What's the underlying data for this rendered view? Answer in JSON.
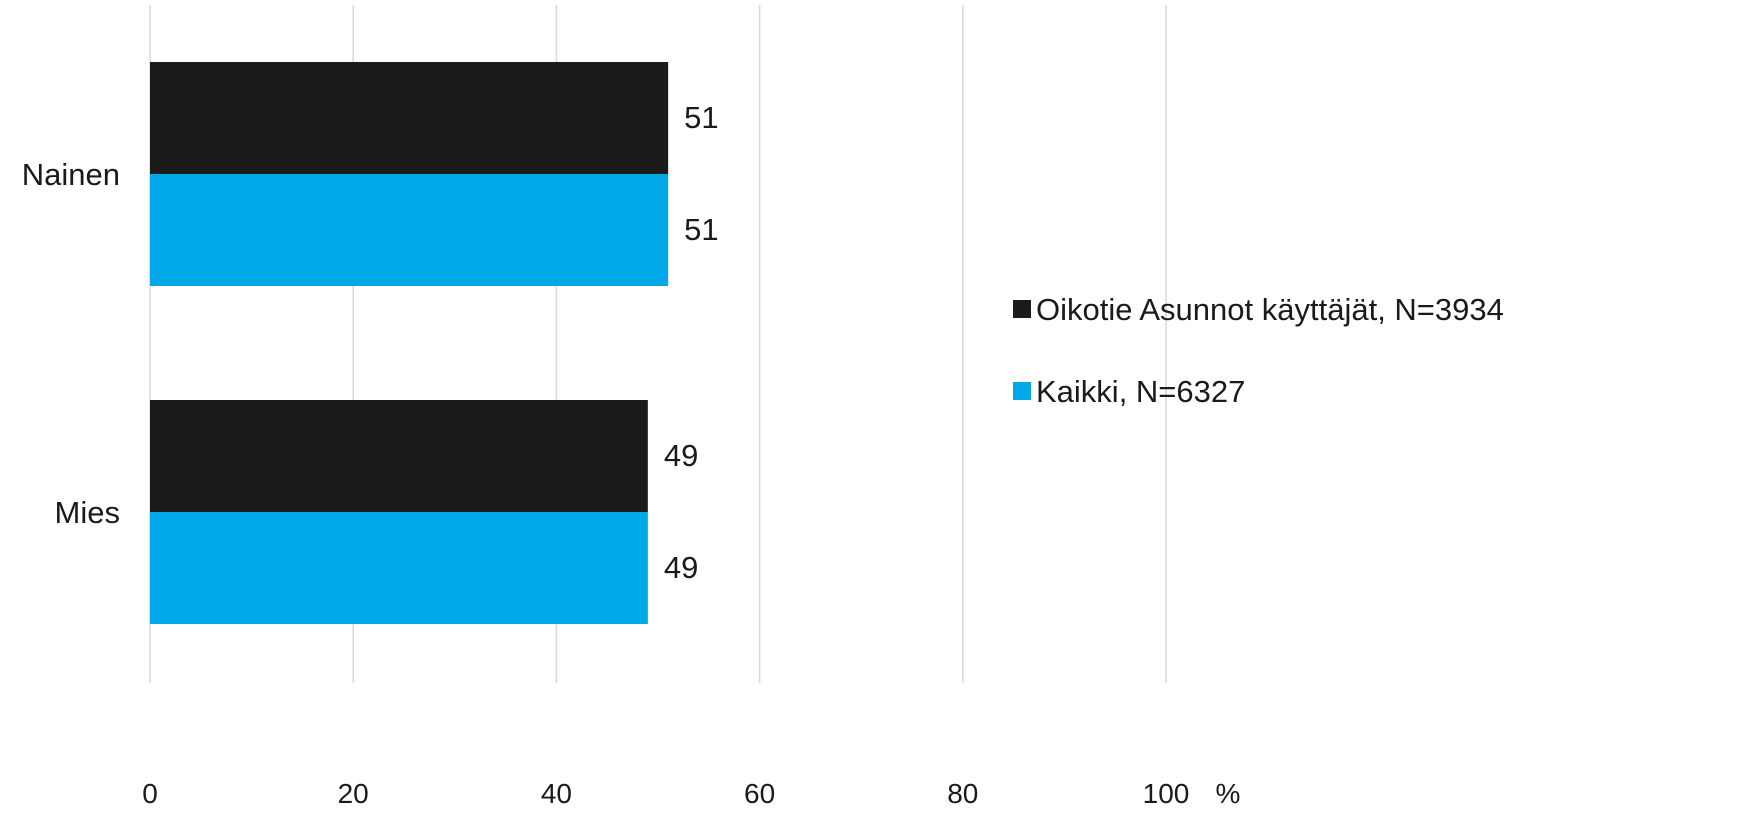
{
  "chart_data": {
    "type": "bar",
    "orientation": "horizontal",
    "categories": [
      "Nainen",
      "Mies"
    ],
    "series": [
      {
        "name": "Oikotie Asunnot käyttäjät, N=3934",
        "color": "#1b1b1b",
        "values": [
          51,
          49
        ]
      },
      {
        "name": "Kaikki, N=6327",
        "color": "#00a8e8",
        "values": [
          51,
          49
        ]
      }
    ],
    "xlim": [
      0,
      100
    ],
    "x_ticks": [
      0,
      20,
      40,
      60,
      80,
      100
    ],
    "x_tick_labels": [
      "0",
      "20",
      "40",
      "60",
      "80",
      "100"
    ],
    "x_unit": "%",
    "grid": "vertical",
    "legend_position": "right",
    "data_labels": true
  }
}
